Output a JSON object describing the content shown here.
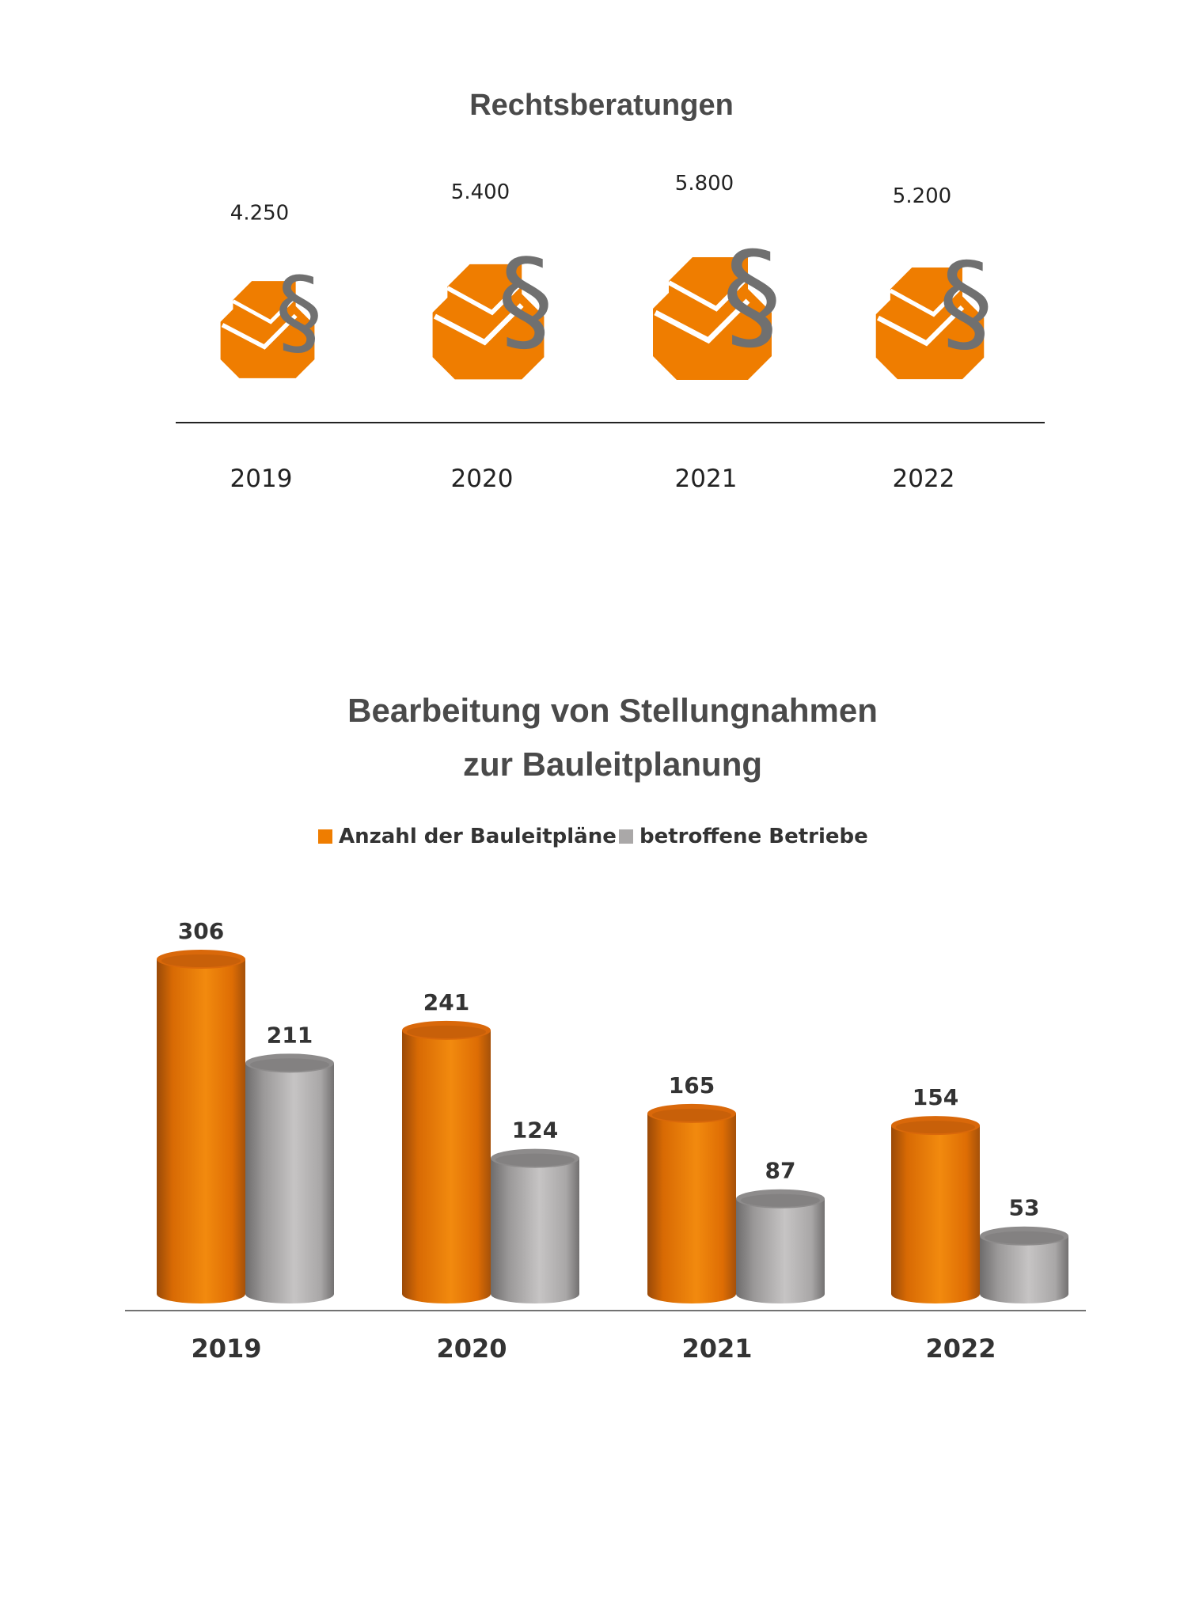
{
  "chart_data": [
    {
      "type": "bar",
      "title": "Rechtsberatungen",
      "categories": [
        "2019",
        "2020",
        "2021",
        "2022"
      ],
      "value_labels": [
        "4.250",
        "5.400",
        "5.800",
        "5.200"
      ],
      "values": [
        4250,
        5400,
        5800,
        5200
      ],
      "symbol": "§",
      "icon": "orange-octagon-logo-with-paragraph-sign",
      "colors": {
        "logo": "#ef7d00",
        "paragraph": "#707070"
      }
    },
    {
      "type": "bar",
      "title_lines": [
        "Bearbeitung von Stellungnahmen",
        "zur Bauleitplanung"
      ],
      "categories": [
        "2019",
        "2020",
        "2021",
        "2022"
      ],
      "series": [
        {
          "name": "Anzahl der Bauleitpläne",
          "values": [
            306,
            241,
            165,
            154
          ],
          "color": "#ef7d00"
        },
        {
          "name": "betroffene Betriebe",
          "values": [
            211,
            124,
            87,
            53
          ],
          "color": "#aaa8a8"
        }
      ],
      "ylim": [
        0,
        306
      ],
      "legend": "top-center"
    }
  ]
}
